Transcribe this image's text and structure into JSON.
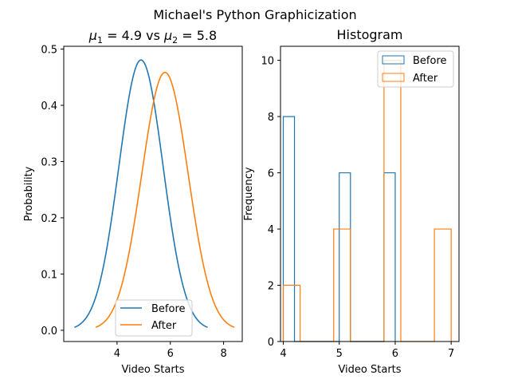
{
  "suptitle": "Michael's Python Graphicization",
  "chart_data": [
    {
      "type": "line",
      "title_parts": {
        "mu1": "μ",
        "sub1": "1",
        "eq1": " = 4.9 vs ",
        "mu2": "μ",
        "sub2": "2",
        "eq2": " = 5.8"
      },
      "xlabel": "Video Starts",
      "ylabel": "Probability",
      "xlim": [
        2.0,
        8.7
      ],
      "ylim": [
        -0.02,
        0.505
      ],
      "xticks": [
        4,
        6,
        8
      ],
      "yticks": [
        0.0,
        0.1,
        0.2,
        0.3,
        0.4,
        0.5
      ],
      "ytick_labels": [
        "0.0",
        "0.1",
        "0.2",
        "0.3",
        "0.4",
        "0.5"
      ],
      "grid": false,
      "legend": "lower-center",
      "series": [
        {
          "name": "Before",
          "color": "#1f77b4",
          "distribution": "normal",
          "mean": 4.9,
          "std": 0.83,
          "x_range": [
            2.4,
            7.4
          ]
        },
        {
          "name": "After",
          "color": "#ff7f0e",
          "distribution": "normal",
          "mean": 5.8,
          "std": 0.87,
          "x_range": [
            3.2,
            8.4
          ]
        }
      ]
    },
    {
      "type": "histogram",
      "title": "Histogram",
      "xlabel": "Video Starts",
      "ylabel": "Frequency",
      "xlim": [
        3.95,
        7.14
      ],
      "ylim": [
        0,
        10.5
      ],
      "xticks": [
        4,
        5,
        6,
        7
      ],
      "yticks": [
        0,
        2,
        4,
        6,
        8,
        10
      ],
      "grid": false,
      "legend": "top-right",
      "series": [
        {
          "name": "Before",
          "color": "#1f77b4",
          "bins": [
            [
              4.0,
              4.2,
              8
            ],
            [
              4.2,
              4.4,
              0
            ],
            [
              4.4,
              4.6,
              0
            ],
            [
              4.6,
              4.8,
              0
            ],
            [
              4.8,
              5.0,
              0
            ],
            [
              5.0,
              5.2,
              6
            ],
            [
              5.2,
              5.4,
              0
            ],
            [
              5.4,
              5.6,
              0
            ],
            [
              5.6,
              5.8,
              0
            ],
            [
              5.8,
              6.0,
              6
            ]
          ]
        },
        {
          "name": "After",
          "color": "#ff7f0e",
          "bins": [
            [
              4.0,
              4.3,
              2
            ],
            [
              4.3,
              4.6,
              0
            ],
            [
              4.6,
              4.9,
              0
            ],
            [
              4.9,
              5.2,
              4
            ],
            [
              5.2,
              5.5,
              0
            ],
            [
              5.5,
              5.8,
              0
            ],
            [
              5.8,
              6.1,
              10
            ],
            [
              6.1,
              6.4,
              0
            ],
            [
              6.4,
              6.7,
              0
            ],
            [
              6.7,
              7.0,
              4
            ]
          ]
        }
      ]
    }
  ]
}
